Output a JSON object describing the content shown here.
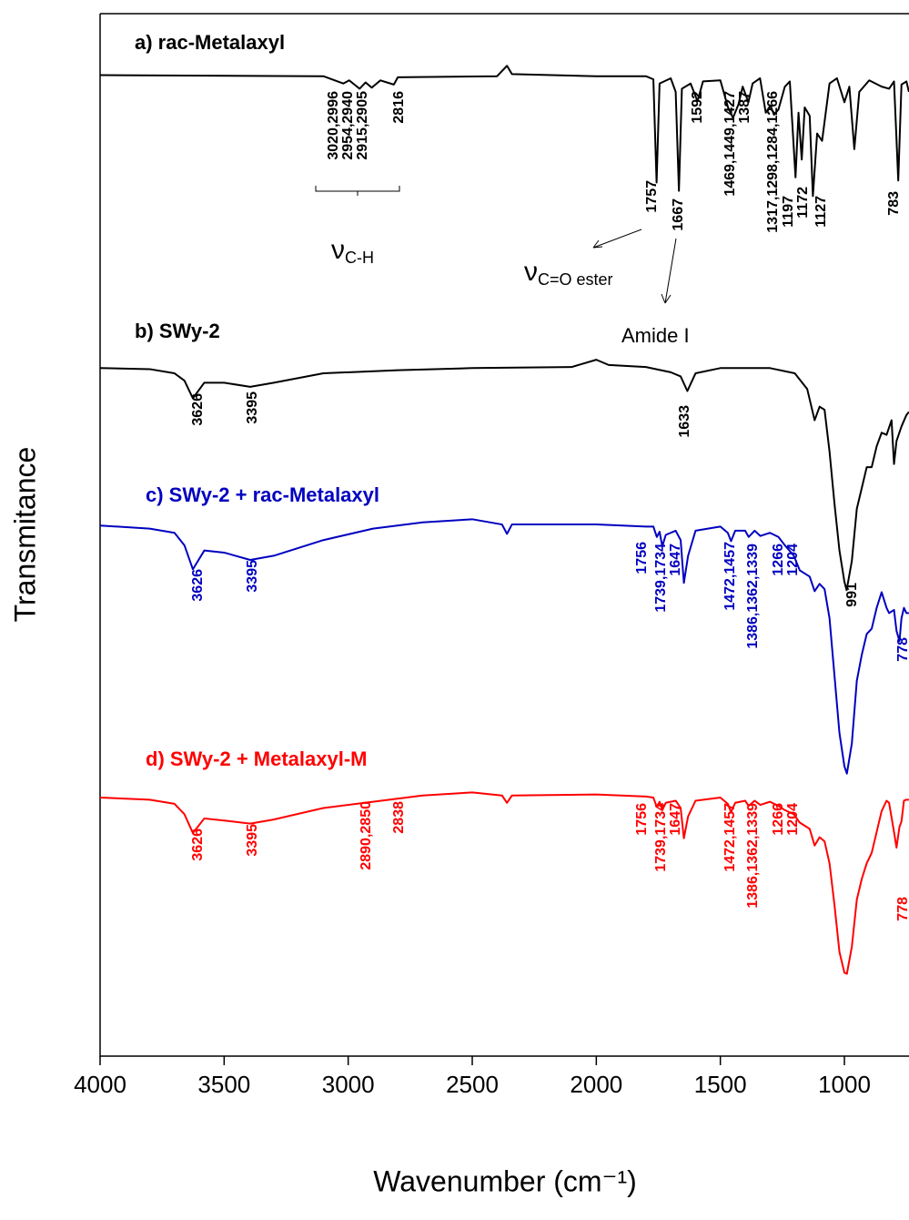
{
  "chart_data": {
    "type": "line",
    "x_label": "Wavenumber (cm⁻¹)",
    "y_label": "Transmitance",
    "xlim": [
      4000,
      740
    ],
    "xticks": [
      4000,
      3500,
      3000,
      2500,
      2000,
      1500,
      1000
    ],
    "ylim": [
      0,
      100
    ],
    "series": [
      {
        "name": "a) rac-Metalaxyl",
        "color": "#000000",
        "x": [
          4000,
          3100,
          3020,
          2996,
          2954,
          2930,
          2905,
          2870,
          2816,
          2800,
          2400,
          2360,
          2340,
          2000,
          1800,
          1770,
          1757,
          1745,
          1700,
          1680,
          1667,
          1655,
          1620,
          1592,
          1570,
          1500,
          1469,
          1449,
          1427,
          1410,
          1387,
          1370,
          1340,
          1317,
          1298,
          1284,
          1266,
          1240,
          1220,
          1197,
          1185,
          1172,
          1160,
          1140,
          1127,
          1110,
          1090,
          1060,
          1030,
          1000,
          980,
          960,
          940,
          900,
          850,
          820,
          800,
          783,
          770,
          750,
          740
        ],
        "values": [
          94.1,
          94.0,
          93.3,
          93.6,
          92.8,
          93.4,
          92.9,
          93.6,
          93.2,
          93.9,
          94.0,
          95.0,
          94.2,
          94.0,
          94.0,
          93.7,
          83.8,
          93.3,
          93.8,
          92.5,
          83.0,
          92.8,
          93.3,
          91.6,
          93.5,
          93.6,
          91.0,
          90.0,
          91.3,
          93.0,
          91.5,
          93.3,
          93.8,
          90.5,
          91.2,
          90.3,
          90.8,
          93.0,
          93.5,
          84.3,
          90.5,
          86.0,
          91.0,
          90.2,
          82.5,
          88.5,
          87.8,
          93.3,
          93.8,
          91.5,
          93.0,
          87.0,
          92.5,
          93.6,
          93.0,
          92.8,
          93.5,
          84.0,
          93.2,
          93.5,
          92.5
        ],
        "peak_labels": [
          "3020,2996",
          "2954,2940",
          "2915,2905",
          "2816",
          "1757",
          "1667",
          "1592",
          "1469,1449,1427",
          "1387",
          "1317,1298,1284,1266",
          "1197",
          "1172",
          "1127",
          "783"
        ]
      },
      {
        "name": "b) SWy-2",
        "color": "#000000",
        "x": [
          4000,
          3800,
          3700,
          3660,
          3626,
          3580,
          3500,
          3395,
          3300,
          3100,
          2800,
          2500,
          2100,
          2000,
          1950,
          1800,
          1700,
          1660,
          1633,
          1600,
          1500,
          1300,
          1200,
          1150,
          1120,
          1100,
          1080,
          1060,
          1040,
          1020,
          1000,
          991,
          970,
          950,
          930,
          910,
          890,
          870,
          850,
          830,
          810,
          800,
          790,
          770,
          750,
          740
        ],
        "values": [
          66.0,
          65.9,
          65.5,
          64.8,
          63.1,
          64.6,
          64.6,
          64.2,
          64.6,
          65.5,
          65.8,
          66.0,
          66.1,
          66.8,
          66.3,
          66.1,
          65.6,
          65.2,
          63.8,
          65.5,
          66.0,
          66.0,
          65.5,
          64.0,
          61.0,
          62.3,
          62.0,
          58.0,
          53.0,
          48.5,
          45.5,
          44.7,
          47.5,
          52.5,
          54.5,
          56.5,
          56.5,
          58.5,
          59.8,
          59.6,
          61.0,
          56.8,
          59.0,
          60.4,
          61.5,
          61.8
        ],
        "peak_labels": [
          "3626",
          "3395",
          "1633",
          "991"
        ]
      },
      {
        "name": "c) SWy-2 + rac-Metalaxyl",
        "color": "#0000c0",
        "x": [
          4000,
          3800,
          3700,
          3660,
          3626,
          3580,
          3500,
          3395,
          3300,
          3100,
          2900,
          2700,
          2500,
          2380,
          2360,
          2340,
          2000,
          1800,
          1770,
          1756,
          1745,
          1734,
          1720,
          1680,
          1660,
          1647,
          1630,
          1600,
          1500,
          1470,
          1457,
          1440,
          1400,
          1386,
          1362,
          1339,
          1300,
          1266,
          1240,
          1204,
          1180,
          1140,
          1120,
          1100,
          1080,
          1060,
          1040,
          1020,
          1000,
          990,
          970,
          950,
          930,
          910,
          890,
          870,
          850,
          830,
          820,
          800,
          790,
          778,
          770,
          760,
          750,
          740
        ],
        "values": [
          50.9,
          50.6,
          50.2,
          49.0,
          46.7,
          48.5,
          48.3,
          47.6,
          48.0,
          49.5,
          50.6,
          51.2,
          51.5,
          51.0,
          50.1,
          51.0,
          51.0,
          50.8,
          50.8,
          49.8,
          50.3,
          48.9,
          50.0,
          50.4,
          49.5,
          45.4,
          48.0,
          50.4,
          50.8,
          50.2,
          49.4,
          50.4,
          50.4,
          49.8,
          50.4,
          49.9,
          50.2,
          49.8,
          49.0,
          48.0,
          46.6,
          46.0,
          44.6,
          45.3,
          44.8,
          42.0,
          36.5,
          31.0,
          27.8,
          27.1,
          30.0,
          36.0,
          38.5,
          40.5,
          41.0,
          43.0,
          44.5,
          43.0,
          42.5,
          42.8,
          40.8,
          39.8,
          42.0,
          43.0,
          42.5,
          42.5
        ],
        "peak_labels": [
          "3626",
          "3395",
          "1756",
          "1739,1734",
          "1647",
          "1472,1457",
          "1386,1362,1339",
          "1266",
          "1204",
          "778"
        ]
      },
      {
        "name": "d) SWy-2 + Metalaxyl-M",
        "color": "#ff0000",
        "x": [
          4000,
          3800,
          3700,
          3660,
          3626,
          3580,
          3500,
          3395,
          3300,
          3100,
          2900,
          2700,
          2500,
          2380,
          2360,
          2340,
          2000,
          1800,
          1770,
          1756,
          1745,
          1734,
          1720,
          1680,
          1660,
          1647,
          1630,
          1600,
          1500,
          1470,
          1457,
          1440,
          1400,
          1386,
          1362,
          1339,
          1300,
          1266,
          1240,
          1204,
          1180,
          1140,
          1120,
          1100,
          1080,
          1060,
          1040,
          1020,
          1000,
          990,
          970,
          950,
          930,
          910,
          890,
          870,
          850,
          830,
          820,
          800,
          790,
          778,
          770,
          760,
          750,
          740
        ],
        "values": [
          24.8,
          24.6,
          24.2,
          23.2,
          21.4,
          22.8,
          22.6,
          22.3,
          22.7,
          23.8,
          24.4,
          25.0,
          25.3,
          25.0,
          24.3,
          25.0,
          25.1,
          24.9,
          24.8,
          23.9,
          24.4,
          23.6,
          24.3,
          24.5,
          23.8,
          20.9,
          23.0,
          24.5,
          24.8,
          24.2,
          23.4,
          24.3,
          24.5,
          24.0,
          24.5,
          24.1,
          24.4,
          24.0,
          23.6,
          23.2,
          22.4,
          21.8,
          20.2,
          21.0,
          20.6,
          18.5,
          14.5,
          10.0,
          8.0,
          7.9,
          10.5,
          15.0,
          17.0,
          18.5,
          19.5,
          21.5,
          23.5,
          24.5,
          24.3,
          21.5,
          20.0,
          22.0,
          22.5,
          24.5,
          24.6,
          24.6
        ],
        "peak_labels": [
          "3626",
          "3395",
          "2890,2850",
          "2838",
          "1756",
          "1739,1734",
          "1647",
          "1472,1457",
          "1386,1362,1339",
          "1266",
          "1204",
          "778"
        ]
      }
    ],
    "annotations": [
      {
        "text": "ν",
        "subscript": "C-H"
      },
      {
        "text": "ν",
        "subscript": "C=O ester"
      },
      "Amide I"
    ]
  }
}
